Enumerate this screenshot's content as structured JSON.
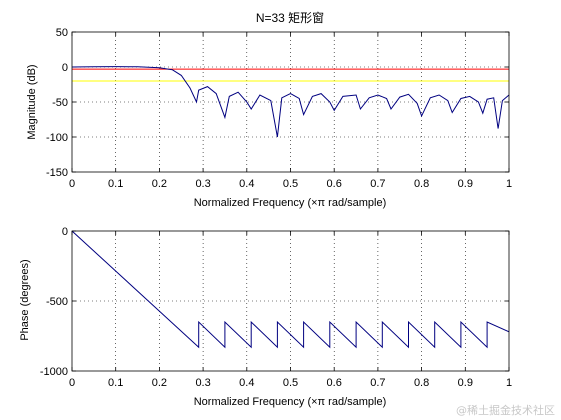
{
  "figure": {
    "watermark": "@稀土掘金技术社区",
    "colors": {
      "background": "#ffffff",
      "axes": "#000000",
      "grid": "#000000",
      "line": "#000080",
      "ref_red": "#ff0000",
      "ref_yellow": "#ffff00"
    }
  },
  "chart_data": [
    {
      "type": "line",
      "title": "N=33 矩形窗",
      "xlabel": "Normalized Frequency  (×π rad/sample)",
      "ylabel": "Magnitude (dB)",
      "xlim": [
        0,
        1
      ],
      "ylim": [
        -150,
        50
      ],
      "xticks": [
        "0",
        "0.1",
        "0.2",
        "0.3",
        "0.4",
        "0.5",
        "0.6",
        "0.7",
        "0.8",
        "0.9",
        "1"
      ],
      "yticks": [
        "50",
        "0",
        "-50",
        "-100",
        "-150"
      ],
      "grid": true,
      "reference_lines": [
        {
          "y": -3,
          "color": "red"
        },
        {
          "y": -20,
          "color": "yellow"
        }
      ],
      "series": [
        {
          "points": [
            [
              0,
              0
            ],
            [
              0.05,
              0.3
            ],
            [
              0.1,
              0.6
            ],
            [
              0.15,
              0.3
            ],
            [
              0.2,
              -1.0
            ],
            [
              0.23,
              -4
            ],
            [
              0.25,
              -12
            ],
            [
              0.27,
              -30
            ],
            [
              0.285,
              -50
            ],
            [
              0.29,
              -33
            ],
            [
              0.31,
              -28
            ],
            [
              0.33,
              -38
            ],
            [
              0.35,
              -72
            ],
            [
              0.36,
              -42
            ],
            [
              0.38,
              -36
            ],
            [
              0.4,
              -50
            ],
            [
              0.41,
              -60
            ],
            [
              0.43,
              -40
            ],
            [
              0.455,
              -48
            ],
            [
              0.47,
              -100
            ],
            [
              0.48,
              -44
            ],
            [
              0.5,
              -38
            ],
            [
              0.52,
              -45
            ],
            [
              0.53,
              -68
            ],
            [
              0.55,
              -42
            ],
            [
              0.57,
              -38
            ],
            [
              0.59,
              -50
            ],
            [
              0.6,
              -62
            ],
            [
              0.62,
              -42
            ],
            [
              0.65,
              -40
            ],
            [
              0.66,
              -60
            ],
            [
              0.68,
              -44
            ],
            [
              0.7,
              -40
            ],
            [
              0.72,
              -45
            ],
            [
              0.73,
              -60
            ],
            [
              0.75,
              -43
            ],
            [
              0.77,
              -39
            ],
            [
              0.79,
              -52
            ],
            [
              0.8,
              -70
            ],
            [
              0.82,
              -44
            ],
            [
              0.84,
              -40
            ],
            [
              0.86,
              -48
            ],
            [
              0.87,
              -65
            ],
            [
              0.89,
              -45
            ],
            [
              0.91,
              -42
            ],
            [
              0.93,
              -50
            ],
            [
              0.94,
              -66
            ],
            [
              0.95,
              -46
            ],
            [
              0.965,
              -44
            ],
            [
              0.975,
              -88
            ],
            [
              0.985,
              -48
            ],
            [
              1.0,
              -40
            ]
          ]
        }
      ]
    },
    {
      "type": "line",
      "title": "",
      "xlabel": "Normalized Frequency  (×π rad/sample)",
      "ylabel": "Phase (degrees)",
      "xlim": [
        0,
        1
      ],
      "ylim": [
        -1000,
        0
      ],
      "xticks": [
        "0",
        "0.1",
        "0.2",
        "0.3",
        "0.4",
        "0.5",
        "0.6",
        "0.7",
        "0.8",
        "0.9",
        "1"
      ],
      "yticks": [
        "0",
        "-500",
        "-1000"
      ],
      "grid": true,
      "series": [
        {
          "points": [
            [
              0,
              0
            ],
            [
              0.29,
              -830
            ],
            [
              0.29,
              -650
            ],
            [
              0.35,
              -830
            ],
            [
              0.35,
              -650
            ],
            [
              0.41,
              -830
            ],
            [
              0.41,
              -650
            ],
            [
              0.47,
              -830
            ],
            [
              0.47,
              -650
            ],
            [
              0.53,
              -830
            ],
            [
              0.53,
              -650
            ],
            [
              0.59,
              -830
            ],
            [
              0.59,
              -650
            ],
            [
              0.65,
              -830
            ],
            [
              0.65,
              -650
            ],
            [
              0.71,
              -830
            ],
            [
              0.71,
              -650
            ],
            [
              0.77,
              -830
            ],
            [
              0.77,
              -650
            ],
            [
              0.83,
              -830
            ],
            [
              0.83,
              -650
            ],
            [
              0.89,
              -830
            ],
            [
              0.89,
              -650
            ],
            [
              0.95,
              -830
            ],
            [
              0.95,
              -650
            ],
            [
              1.0,
              -720
            ]
          ]
        }
      ]
    }
  ]
}
